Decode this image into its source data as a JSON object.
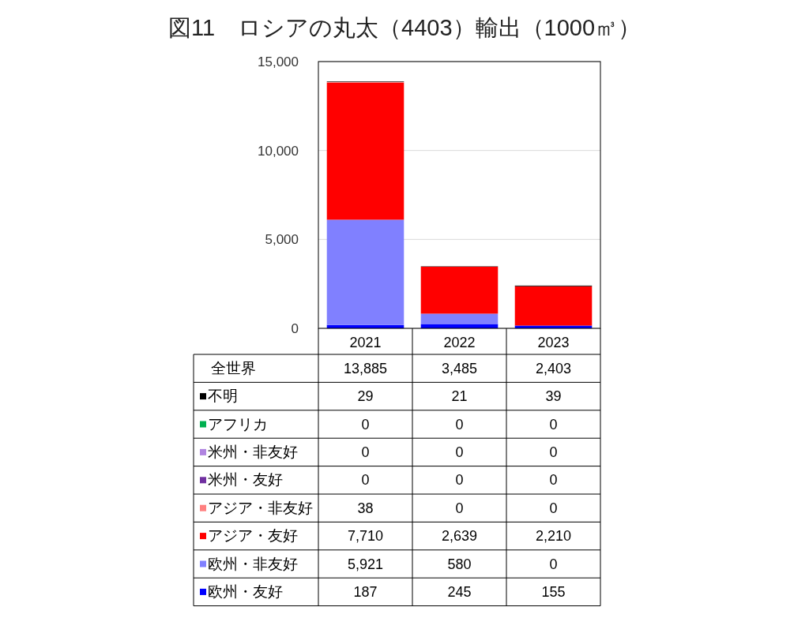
{
  "chart_data": {
    "type": "bar",
    "title": "図11　ロシアの丸太（4403）輸出（1000㎥）",
    "categories": [
      "2021",
      "2022",
      "2023"
    ],
    "stacked": true,
    "ylim": [
      0,
      15000
    ],
    "yticks": [
      0,
      {
        "value": 5000,
        "label": "5,000"
      },
      {
        "value": 10000,
        "label": "10,000"
      },
      {
        "value": 15000,
        "label": "15,000"
      }
    ],
    "grid": "y",
    "legend": "bottom",
    "annotations": [
      "全世界"
    ],
    "totals": [
      "13,885",
      "3,485",
      "2,403"
    ],
    "series": [
      {
        "name": "欧州・友好",
        "color": "#0000ff",
        "values": [
          187,
          245,
          155
        ],
        "value_labels": [
          "187",
          "245",
          "155"
        ]
      },
      {
        "name": "欧州・非友好",
        "color": "#8080ff",
        "values": [
          5921,
          580,
          0
        ],
        "value_labels": [
          "5,921",
          "580",
          "0"
        ]
      },
      {
        "name": "アジア・友好",
        "color": "#ff0000",
        "values": [
          7710,
          2639,
          2210
        ],
        "value_labels": [
          "7,710",
          "2,639",
          "2,210"
        ]
      },
      {
        "name": "アジア・非友好",
        "color": "#ff8080",
        "values": [
          38,
          0,
          0
        ],
        "value_labels": [
          "38",
          "0",
          "0"
        ]
      },
      {
        "name": "米州・友好",
        "color": "#7030a0",
        "values": [
          0,
          0,
          0
        ],
        "value_labels": [
          "0",
          "0",
          "0"
        ]
      },
      {
        "name": "米州・非友好",
        "color": "#b084e0",
        "values": [
          0,
          0,
          0
        ],
        "value_labels": [
          "0",
          "0",
          "0"
        ]
      },
      {
        "name": "アフリカ",
        "color": "#00b050",
        "values": [
          0,
          0,
          0
        ],
        "value_labels": [
          "0",
          "0",
          "0"
        ]
      },
      {
        "name": "不明",
        "color": "#000000",
        "values": [
          29,
          21,
          39
        ],
        "value_labels": [
          "29",
          "21",
          "39"
        ]
      }
    ]
  }
}
